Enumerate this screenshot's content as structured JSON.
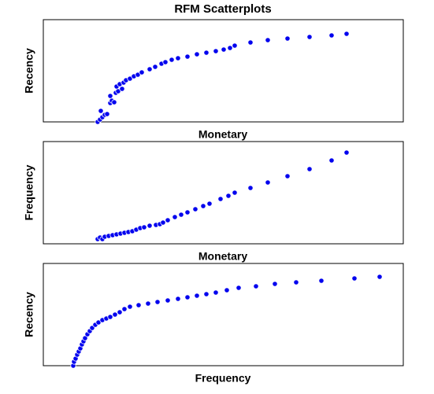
{
  "chart_data": [
    {
      "type": "scatter",
      "title": "RFM Scatterplots",
      "x_label": "Monetary",
      "y_label": "Recency",
      "color": "#0000ee",
      "xlim": [
        0,
        457
      ],
      "ylim": [
        0,
        130
      ],
      "x": [
        69,
        72,
        75,
        78,
        73,
        81,
        85,
        87,
        90,
        85,
        92,
        95,
        100,
        93,
        97,
        102,
        105,
        110,
        115,
        120,
        125,
        135,
        142,
        150,
        155,
        163,
        171,
        183,
        195,
        207,
        219,
        229,
        237,
        243,
        263,
        285,
        310,
        338,
        366,
        385
      ],
      "values": [
        0,
        3,
        6,
        9,
        14,
        10,
        24,
        27,
        25,
        33,
        37,
        39,
        42,
        45,
        48,
        50,
        53,
        55,
        58,
        60,
        63,
        67,
        70,
        74,
        76,
        79,
        81,
        83,
        86,
        88,
        90,
        92,
        94,
        97,
        101,
        104,
        106,
        108,
        110,
        112
      ]
    },
    {
      "type": "scatter",
      "x_label": "Monetary",
      "y_label": "Frequency",
      "color": "#0000ee",
      "xlim": [
        0,
        457
      ],
      "ylim": [
        0,
        130
      ],
      "x": [
        69,
        72,
        75,
        78,
        83,
        88,
        93,
        98,
        103,
        108,
        113,
        118,
        123,
        128,
        135,
        143,
        148,
        152,
        158,
        167,
        175,
        183,
        193,
        203,
        211,
        225,
        235,
        243,
        263,
        285,
        310,
        338,
        366,
        385
      ],
      "values": [
        6,
        8,
        6,
        9,
        10,
        11,
        12,
        13,
        14,
        15,
        16,
        18,
        20,
        21,
        23,
        24,
        25,
        27,
        30,
        34,
        37,
        40,
        44,
        48,
        51,
        57,
        61,
        65,
        71,
        78,
        86,
        95,
        106,
        116
      ]
    },
    {
      "type": "scatter",
      "x_label": "Frequency",
      "y_label": "Recency",
      "color": "#0000ee",
      "xlim": [
        0,
        457
      ],
      "ylim": [
        0,
        130
      ],
      "x": [
        38,
        39,
        41,
        43,
        45,
        47,
        49,
        51,
        53,
        56,
        59,
        62,
        66,
        70,
        75,
        80,
        85,
        91,
        97,
        103,
        110,
        121,
        133,
        145,
        158,
        171,
        183,
        195,
        207,
        219,
        233,
        248,
        270,
        294,
        321,
        353,
        395,
        427
      ],
      "values": [
        0,
        5,
        9,
        14,
        18,
        22,
        27,
        31,
        35,
        40,
        44,
        48,
        52,
        55,
        58,
        60,
        62,
        65,
        68,
        72,
        75,
        77,
        79,
        81,
        83,
        85,
        87,
        89,
        91,
        93,
        96,
        99,
        101,
        104,
        106,
        108,
        111,
        113
      ]
    }
  ]
}
